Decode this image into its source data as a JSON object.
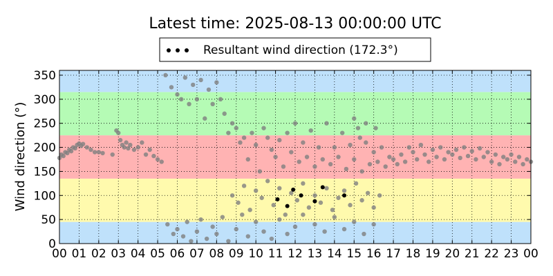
{
  "chart_data": {
    "type": "scatter",
    "title": "Latest time: 2025-08-13 00:00:00 UTC",
    "xlabel": "",
    "ylabel": "Wind direction (°)",
    "xlim": [
      0,
      24
    ],
    "ylim": [
      0,
      360
    ],
    "x_ticks": [
      0,
      1,
      2,
      3,
      4,
      5,
      6,
      7,
      8,
      9,
      10,
      11,
      12,
      13,
      14,
      15,
      16,
      17,
      18,
      19,
      20,
      21,
      22,
      23,
      24
    ],
    "x_tick_labels": [
      "00",
      "01",
      "02",
      "03",
      "04",
      "05",
      "06",
      "07",
      "08",
      "09",
      "10",
      "11",
      "12",
      "13",
      "14",
      "15",
      "16",
      "17",
      "18",
      "19",
      "20",
      "21",
      "22",
      "23",
      "00"
    ],
    "y_ticks": [
      0,
      50,
      100,
      150,
      200,
      250,
      300,
      350
    ],
    "grid": true,
    "legend": {
      "placement": "top-center",
      "entries": [
        "Resultant wind direction (172.3°)"
      ]
    },
    "background_bands": [
      {
        "from": 0,
        "to": 45,
        "color": "#bfe1fb"
      },
      {
        "from": 45,
        "to": 135,
        "color": "#fffaad"
      },
      {
        "from": 135,
        "to": 225,
        "color": "#ffb3b3"
      },
      {
        "from": 225,
        "to": 315,
        "color": "#b5fbb5"
      },
      {
        "from": 315,
        "to": 360,
        "color": "#bfe1fb"
      }
    ],
    "series": [
      {
        "color": "#808080",
        "points": [
          [
            0.0,
            178
          ],
          [
            0.1,
            185
          ],
          [
            0.2,
            182
          ],
          [
            0.3,
            190
          ],
          [
            0.4,
            188
          ],
          [
            0.5,
            195
          ],
          [
            0.6,
            192
          ],
          [
            0.7,
            200
          ],
          [
            0.8,
            198
          ],
          [
            0.9,
            205
          ],
          [
            1.0,
            208
          ],
          [
            1.1,
            203
          ],
          [
            1.2,
            207
          ],
          [
            1.4,
            200
          ],
          [
            1.6,
            195
          ],
          [
            1.8,
            190
          ],
          [
            2.0,
            190
          ],
          [
            2.2,
            188
          ],
          [
            2.7,
            185
          ],
          [
            2.9,
            235
          ],
          [
            3.0,
            230
          ],
          [
            3.1,
            215
          ],
          [
            3.2,
            205
          ],
          [
            3.3,
            200
          ],
          [
            3.4,
            210
          ],
          [
            3.5,
            198
          ],
          [
            3.6,
            205
          ],
          [
            3.8,
            195
          ],
          [
            4.0,
            200
          ],
          [
            4.2,
            210
          ],
          [
            4.4,
            185
          ],
          [
            4.6,
            195
          ],
          [
            4.8,
            182
          ],
          [
            5.0,
            175
          ],
          [
            5.2,
            170
          ],
          [
            5.4,
            350
          ],
          [
            5.7,
            325
          ],
          [
            6.0,
            310
          ],
          [
            6.2,
            300
          ],
          [
            6.4,
            345
          ],
          [
            6.6,
            290
          ],
          [
            6.8,
            330
          ],
          [
            7.0,
            300
          ],
          [
            7.2,
            340
          ],
          [
            7.4,
            260
          ],
          [
            7.6,
            320
          ],
          [
            7.8,
            290
          ],
          [
            8.0,
            335
          ],
          [
            8.2,
            300
          ],
          [
            8.4,
            270
          ],
          [
            8.6,
            230
          ],
          [
            8.8,
            250
          ],
          [
            9.0,
            240
          ],
          [
            9.2,
            210
          ],
          [
            9.4,
            220
          ],
          [
            9.6,
            175
          ],
          [
            9.8,
            230
          ],
          [
            10.0,
            205
          ],
          [
            10.2,
            150
          ],
          [
            10.4,
            240
          ],
          [
            10.6,
            220
          ],
          [
            10.8,
            195
          ],
          [
            11.0,
            180
          ],
          [
            11.2,
            215
          ],
          [
            11.4,
            160
          ],
          [
            11.6,
            230
          ],
          [
            11.8,
            190
          ],
          [
            12.0,
            250
          ],
          [
            12.2,
            170
          ],
          [
            12.4,
            210
          ],
          [
            12.6,
            180
          ],
          [
            12.8,
            235
          ],
          [
            13.0,
            160
          ],
          [
            13.2,
            200
          ],
          [
            13.4,
            175
          ],
          [
            13.6,
            250
          ],
          [
            13.8,
            165
          ],
          [
            14.0,
            200
          ],
          [
            14.2,
            180
          ],
          [
            14.4,
            230
          ],
          [
            14.6,
            155
          ],
          [
            14.8,
            205
          ],
          [
            15.0,
            175
          ],
          [
            15.2,
            240
          ],
          [
            15.4,
            150
          ],
          [
            15.6,
            210
          ],
          [
            15.8,
            165
          ],
          [
            16.0,
            190
          ],
          [
            16.2,
            170
          ],
          [
            16.4,
            200
          ],
          [
            16.6,
            160
          ],
          [
            16.8,
            180
          ],
          [
            17.0,
            175
          ],
          [
            17.2,
            165
          ],
          [
            17.4,
            185
          ],
          [
            17.6,
            170
          ],
          [
            17.8,
            200
          ],
          [
            18.0,
            190
          ],
          [
            18.2,
            175
          ],
          [
            18.4,
            205
          ],
          [
            18.6,
            185
          ],
          [
            18.8,
            170
          ],
          [
            19.0,
            195
          ],
          [
            19.2,
            180
          ],
          [
            19.4,
            200
          ],
          [
            19.6,
            175
          ],
          [
            19.8,
            190
          ],
          [
            20.0,
            185
          ],
          [
            20.2,
            195
          ],
          [
            20.4,
            178
          ],
          [
            20.6,
            200
          ],
          [
            20.8,
            182
          ],
          [
            21.0,
            192
          ],
          [
            21.2,
            175
          ],
          [
            21.4,
            198
          ],
          [
            21.6,
            180
          ],
          [
            21.8,
            190
          ],
          [
            22.0,
            170
          ],
          [
            22.2,
            185
          ],
          [
            22.4,
            165
          ],
          [
            22.6,
            180
          ],
          [
            22.8,
            175
          ],
          [
            23.0,
            185
          ],
          [
            23.2,
            170
          ],
          [
            23.4,
            180
          ],
          [
            23.6,
            165
          ],
          [
            23.8,
            175
          ],
          [
            24.0,
            170
          ],
          [
            5.5,
            40
          ],
          [
            5.8,
            20
          ],
          [
            6.0,
            30
          ],
          [
            6.3,
            15
          ],
          [
            6.5,
            45
          ],
          [
            6.7,
            5
          ],
          [
            7.0,
            25
          ],
          [
            7.2,
            50
          ],
          [
            7.5,
            10
          ],
          [
            7.8,
            35
          ],
          [
            8.0,
            20
          ],
          [
            8.3,
            55
          ],
          [
            8.6,
            5
          ],
          [
            9.0,
            30
          ],
          [
            9.3,
            60
          ],
          [
            9.6,
            15
          ],
          [
            10.0,
            45
          ],
          [
            10.4,
            25
          ],
          [
            10.8,
            10
          ],
          [
            11.2,
            50
          ],
          [
            11.6,
            20
          ],
          [
            12.0,
            35
          ],
          [
            12.4,
            60
          ],
          [
            13.0,
            40
          ],
          [
            13.5,
            25
          ],
          [
            14.0,
            55
          ],
          [
            14.5,
            30
          ],
          [
            15.0,
            45
          ],
          [
            15.5,
            20
          ],
          [
            16.0,
            40
          ],
          [
            8.8,
            100
          ],
          [
            9.1,
            85
          ],
          [
            9.4,
            120
          ],
          [
            9.7,
            70
          ],
          [
            10.0,
            110
          ],
          [
            10.3,
            95
          ],
          [
            10.6,
            130
          ],
          [
            10.9,
            80
          ],
          [
            11.2,
            115
          ],
          [
            11.5,
            60
          ],
          [
            11.8,
            105
          ],
          [
            12.1,
            90
          ],
          [
            12.4,
            125
          ],
          [
            12.7,
            75
          ],
          [
            13.0,
            100
          ],
          [
            13.3,
            85
          ],
          [
            13.6,
            115
          ],
          [
            13.9,
            70
          ],
          [
            14.2,
            95
          ],
          [
            14.5,
            110
          ],
          [
            14.8,
            80
          ],
          [
            15.1,
            125
          ],
          [
            15.4,
            90
          ],
          [
            15.7,
            105
          ],
          [
            16.0,
            75
          ],
          [
            16.3,
            100
          ],
          [
            15.0,
            260
          ],
          [
            15.3,
            220
          ],
          [
            15.6,
            250
          ],
          [
            16.1,
            240
          ]
        ]
      },
      {
        "color": "#000000",
        "points": [
          [
            11.1,
            92
          ],
          [
            11.6,
            78
          ],
          [
            11.9,
            112
          ],
          [
            12.3,
            100
          ],
          [
            13.0,
            88
          ],
          [
            13.4,
            117
          ],
          [
            14.5,
            100
          ]
        ]
      }
    ]
  }
}
